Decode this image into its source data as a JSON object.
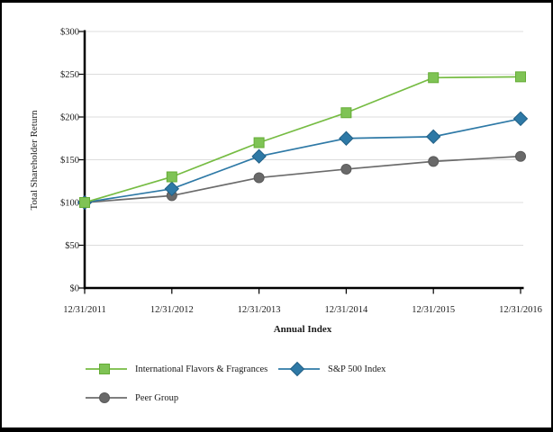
{
  "chart_data": {
    "type": "line",
    "title": "",
    "xlabel": "Annual Index",
    "ylabel": "Total Shareholder Return",
    "categories": [
      "12/31/2011",
      "12/31/2012",
      "12/31/2013",
      "12/31/2014",
      "12/31/2015",
      "12/31/2016"
    ],
    "series": [
      {
        "name": "International Flavors & Fragrances",
        "marker": "square",
        "color": "#76BC43",
        "fill": "#7FC355",
        "edge": "#64AC35",
        "values": [
          100,
          130,
          170,
          205,
          246,
          247
        ]
      },
      {
        "name": "S&P 500 Index",
        "marker": "diamond",
        "color": "#2E79A6",
        "fill": "#2E79A6",
        "edge": "#205F85",
        "values": [
          100,
          116,
          154,
          175,
          177,
          198
        ]
      },
      {
        "name": "Peer Group",
        "marker": "circle",
        "color": "#6B6B6B",
        "fill": "#696969",
        "edge": "#5A5A5A",
        "values": [
          100,
          108,
          129,
          139,
          148,
          154
        ]
      }
    ],
    "ylim": [
      0,
      300
    ],
    "ytick_step": 50,
    "ytick_labels": [
      "$0",
      "$50",
      "$100",
      "$150",
      "$200",
      "$250",
      "$300"
    ],
    "grid": "horizontal",
    "gridline_color": "#DCDCDC",
    "axis_color": "#000000",
    "legend_position": "bottom-left"
  }
}
